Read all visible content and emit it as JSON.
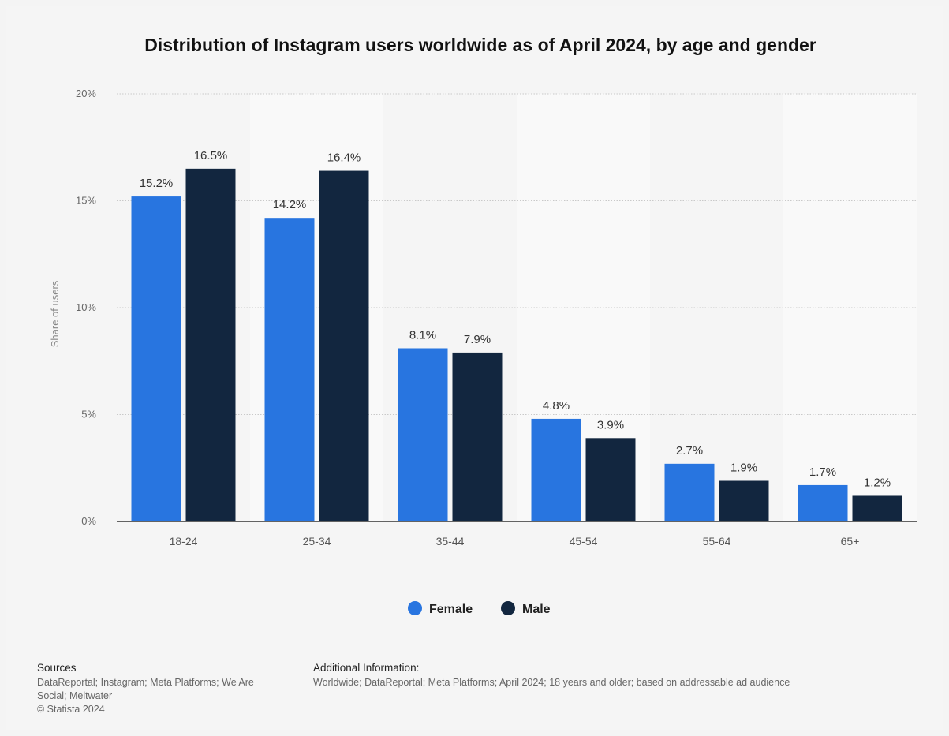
{
  "chart_data": {
    "type": "bar",
    "title": "Distribution of Instagram users worldwide as of April 2024, by age and gender",
    "xlabel": "",
    "ylabel": "Share of users",
    "ylim": [
      0,
      20
    ],
    "yticks": [
      0,
      5,
      10,
      15,
      20
    ],
    "ytick_labels": [
      "0%",
      "5%",
      "10%",
      "15%",
      "20%"
    ],
    "value_suffix": "%",
    "categories": [
      "18-24",
      "25-34",
      "35-44",
      "45-54",
      "55-64",
      "65+"
    ],
    "series": [
      {
        "name": "Female",
        "color": "#2875e0",
        "values": [
          15.2,
          14.2,
          8.1,
          4.8,
          2.7,
          1.7
        ]
      },
      {
        "name": "Male",
        "color": "#12263f",
        "values": [
          16.5,
          16.4,
          7.9,
          3.9,
          1.9,
          1.2
        ]
      }
    ],
    "grid": true,
    "legend_position": "bottom-center"
  },
  "sources": {
    "heading": "Sources",
    "line1": "DataReportal; Instagram; Meta Platforms; We Are",
    "line2": "Social; Meltwater",
    "copyright": "© Statista 2024"
  },
  "additional_info": {
    "heading": "Additional Information:",
    "text": "Worldwide; DataReportal; Meta Platforms; April 2024; 18 years and older; based on addressable ad audience"
  }
}
